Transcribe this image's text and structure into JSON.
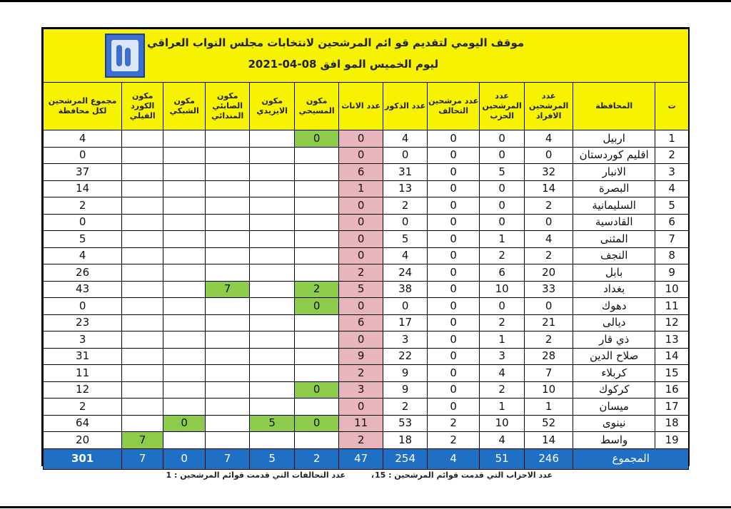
{
  "header": {
    "title": "موقف اليومي لتقديم قو ائم المرشحين لانتخابات مجلس النواب العراقي",
    "subtitle": "ليوم الخميس المو افق 08-04-2021",
    "logo_icon": "iraqi-electoral-commission-logo"
  },
  "columns": {
    "num": "ت",
    "gov": "المحافظة",
    "individuals": "عدد المرشحين الافراد",
    "party": "عدد المرشحين الحزب",
    "alliance": "عدد مرشحين التحالف",
    "males": "عدد الذكور",
    "females": "عدد الاناث",
    "christian": "مكون المسيحي",
    "yazidi": "مكون الايزيدي",
    "sabian": "مكون الصابئي المندائي",
    "shabak": "مكون الشبكي",
    "kurd_faili": "مكون الكورد الفيلي",
    "total": "مجموع المرشحين لكل محافظة"
  },
  "rows": [
    {
      "num": "1",
      "gov": "اربيل",
      "individuals": "4",
      "party": "0",
      "alliance": "0",
      "males": "4",
      "females": "0",
      "christian": "0",
      "yazidi": "",
      "sabian": "",
      "shabak": "",
      "kurd_faili": "",
      "total": "4"
    },
    {
      "num": "2",
      "gov": "اقليم كوردستان",
      "individuals": "0",
      "party": "0",
      "alliance": "0",
      "males": "0",
      "females": "0",
      "christian": "",
      "yazidi": "",
      "sabian": "",
      "shabak": "",
      "kurd_faili": "",
      "total": "0"
    },
    {
      "num": "3",
      "gov": "الانبار",
      "individuals": "32",
      "party": "5",
      "alliance": "0",
      "males": "31",
      "females": "6",
      "christian": "",
      "yazidi": "",
      "sabian": "",
      "shabak": "",
      "kurd_faili": "",
      "total": "37"
    },
    {
      "num": "4",
      "gov": "البصرة",
      "individuals": "14",
      "party": "0",
      "alliance": "0",
      "males": "13",
      "females": "1",
      "christian": "",
      "yazidi": "",
      "sabian": "",
      "shabak": "",
      "kurd_faili": "",
      "total": "14"
    },
    {
      "num": "5",
      "gov": "السليمانية",
      "individuals": "2",
      "party": "0",
      "alliance": "0",
      "males": "2",
      "females": "0",
      "christian": "",
      "yazidi": "",
      "sabian": "",
      "shabak": "",
      "kurd_faili": "",
      "total": "2"
    },
    {
      "num": "6",
      "gov": "القادسية",
      "individuals": "0",
      "party": "0",
      "alliance": "0",
      "males": "0",
      "females": "0",
      "christian": "",
      "yazidi": "",
      "sabian": "",
      "shabak": "",
      "kurd_faili": "",
      "total": "0"
    },
    {
      "num": "7",
      "gov": "المثنى",
      "individuals": "4",
      "party": "1",
      "alliance": "0",
      "males": "5",
      "females": "0",
      "christian": "",
      "yazidi": "",
      "sabian": "",
      "shabak": "",
      "kurd_faili": "",
      "total": "5"
    },
    {
      "num": "8",
      "gov": "النجف",
      "individuals": "2",
      "party": "2",
      "alliance": "0",
      "males": "4",
      "females": "0",
      "christian": "",
      "yazidi": "",
      "sabian": "",
      "shabak": "",
      "kurd_faili": "",
      "total": "4"
    },
    {
      "num": "9",
      "gov": "بابل",
      "individuals": "20",
      "party": "6",
      "alliance": "0",
      "males": "24",
      "females": "2",
      "christian": "",
      "yazidi": "",
      "sabian": "",
      "shabak": "",
      "kurd_faili": "",
      "total": "26"
    },
    {
      "num": "10",
      "gov": "بغداد",
      "individuals": "33",
      "party": "10",
      "alliance": "0",
      "males": "38",
      "females": "5",
      "christian": "2",
      "yazidi": "",
      "sabian": "7",
      "shabak": "",
      "kurd_faili": "",
      "total": "43"
    },
    {
      "num": "11",
      "gov": "دهوك",
      "individuals": "0",
      "party": "0",
      "alliance": "0",
      "males": "0",
      "females": "0",
      "christian": "0",
      "yazidi": "",
      "sabian": "",
      "shabak": "",
      "kurd_faili": "",
      "total": "0"
    },
    {
      "num": "12",
      "gov": "ديالى",
      "individuals": "21",
      "party": "2",
      "alliance": "0",
      "males": "17",
      "females": "6",
      "christian": "",
      "yazidi": "",
      "sabian": "",
      "shabak": "",
      "kurd_faili": "",
      "total": "23"
    },
    {
      "num": "13",
      "gov": "ذي قار",
      "individuals": "2",
      "party": "1",
      "alliance": "0",
      "males": "3",
      "females": "0",
      "christian": "",
      "yazidi": "",
      "sabian": "",
      "shabak": "",
      "kurd_faili": "",
      "total": "3"
    },
    {
      "num": "14",
      "gov": "صلاح الدين",
      "individuals": "28",
      "party": "3",
      "alliance": "0",
      "males": "22",
      "females": "9",
      "christian": "",
      "yazidi": "",
      "sabian": "",
      "shabak": "",
      "kurd_faili": "",
      "total": "31"
    },
    {
      "num": "15",
      "gov": "كربلاء",
      "individuals": "7",
      "party": "4",
      "alliance": "0",
      "males": "9",
      "females": "2",
      "christian": "",
      "yazidi": "",
      "sabian": "",
      "shabak": "",
      "kurd_faili": "",
      "total": "11"
    },
    {
      "num": "16",
      "gov": "كركوك",
      "individuals": "10",
      "party": "2",
      "alliance": "0",
      "males": "9",
      "females": "3",
      "christian": "0",
      "yazidi": "",
      "sabian": "",
      "shabak": "",
      "kurd_faili": "",
      "total": "12"
    },
    {
      "num": "17",
      "gov": "ميسان",
      "individuals": "1",
      "party": "1",
      "alliance": "0",
      "males": "2",
      "females": "0",
      "christian": "",
      "yazidi": "",
      "sabian": "",
      "shabak": "",
      "kurd_faili": "",
      "total": "2"
    },
    {
      "num": "18",
      "gov": "نينوى",
      "individuals": "52",
      "party": "10",
      "alliance": "2",
      "males": "53",
      "females": "11",
      "christian": "0",
      "yazidi": "5",
      "sabian": "",
      "shabak": "0",
      "kurd_faili": "",
      "total": "64"
    },
    {
      "num": "19",
      "gov": "واسط",
      "individuals": "14",
      "party": "4",
      "alliance": "2",
      "males": "18",
      "females": "2",
      "christian": "",
      "yazidi": "",
      "sabian": "",
      "shabak": "",
      "kurd_faili": "7",
      "total": "20"
    }
  ],
  "totals": {
    "label": "المجموع",
    "individuals": "246",
    "party": "51",
    "alliance": "4",
    "males": "254",
    "females": "47",
    "christian": "2",
    "yazidi": "5",
    "sabian": "7",
    "shabak": "0",
    "kurd_faili": "7",
    "total": "301"
  },
  "footer": {
    "parties_note": "عدد الاحزاب التي قدمت قوائم المرشحين : 15",
    "separator": "،",
    "alliances_note": "عدد التحالفات التي قدمت قوائم المرشحين : 1"
  },
  "colors": {
    "header_bg": "#f7f200",
    "females_cell": "#e9b5bc",
    "component_highlight": "#8ccc4a",
    "totals_bg": "#1f6fc5"
  }
}
